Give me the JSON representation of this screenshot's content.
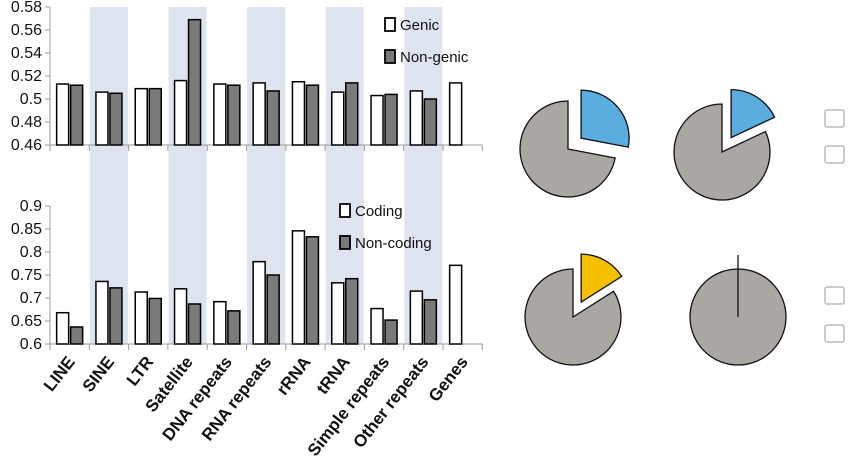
{
  "colors": {
    "band": "#dde4f0",
    "bar_light": "#ffffff",
    "bar_dark": "#7a7a7a",
    "bar_stroke": "#000000",
    "pie_grey": "#aaa7a3",
    "pie_blue": "#5aaedf",
    "pie_yellow": "#f5c000",
    "axis": "#9a9a9a"
  },
  "chart_data": [
    {
      "type": "bar",
      "categories": [
        "LINE",
        "SINE",
        "LTR",
        "Satellite",
        "DNA repeats",
        "RNA repeats",
        "rRNA",
        "tRNA",
        "Simple repeats",
        "Other repeats",
        "Genes"
      ],
      "ylim": [
        0.46,
        0.58
      ],
      "yticks": [
        "0.46",
        "0.48",
        "0.5",
        "0.52",
        "0.54",
        "0.56",
        "0.58"
      ],
      "legend_position": "top-right",
      "shaded_categories": [
        1,
        3,
        5,
        7,
        9
      ],
      "series": [
        {
          "name": "Genic",
          "values": [
            0.513,
            0.506,
            0.509,
            0.516,
            0.513,
            0.514,
            0.515,
            0.506,
            0.503,
            0.507,
            0.514
          ]
        },
        {
          "name": "Non-genic",
          "values": [
            0.512,
            0.505,
            0.509,
            0.569,
            0.512,
            0.507,
            0.512,
            0.514,
            0.504,
            0.5,
            null
          ]
        }
      ]
    },
    {
      "type": "bar",
      "categories": [
        "LINE",
        "SINE",
        "LTR",
        "Satellite",
        "DNA repeats",
        "RNA repeats",
        "rRNA",
        "tRNA",
        "Simple repeats",
        "Other repeats",
        "Genes"
      ],
      "ylim": [
        0.6,
        0.9
      ],
      "yticks": [
        "0.6",
        "0.65",
        "0.7",
        "0.75",
        "0.8",
        "0.85",
        "0.9"
      ],
      "legend_position": "top-right",
      "shaded_categories": [
        1,
        3,
        5,
        7,
        9
      ],
      "series": [
        {
          "name": "Coding",
          "values": [
            0.668,
            0.736,
            0.713,
            0.72,
            0.692,
            0.779,
            0.846,
            0.733,
            0.677,
            0.715,
            0.771
          ]
        },
        {
          "name": "Non-coding",
          "values": [
            0.637,
            0.722,
            0.699,
            0.687,
            0.672,
            0.75,
            0.833,
            0.742,
            0.652,
            0.696,
            null
          ]
        }
      ]
    },
    {
      "type": "pie",
      "slices": [
        {
          "share": 0.72,
          "color": "grey",
          "exploded": false
        },
        {
          "share": 0.28,
          "color": "blue",
          "exploded": true
        }
      ]
    },
    {
      "type": "pie",
      "slices": [
        {
          "share": 0.82,
          "color": "grey",
          "exploded": false
        },
        {
          "share": 0.18,
          "color": "blue",
          "exploded": true
        }
      ]
    },
    {
      "type": "pie",
      "slices": [
        {
          "share": 0.84,
          "color": "grey",
          "exploded": false
        },
        {
          "share": 0.16,
          "color": "yellow",
          "exploded": true
        }
      ]
    },
    {
      "type": "pie",
      "slices": [
        {
          "share": 0.995,
          "color": "grey",
          "exploded": false
        },
        {
          "share": 0.005,
          "color": "blue",
          "exploded": false
        }
      ]
    }
  ]
}
